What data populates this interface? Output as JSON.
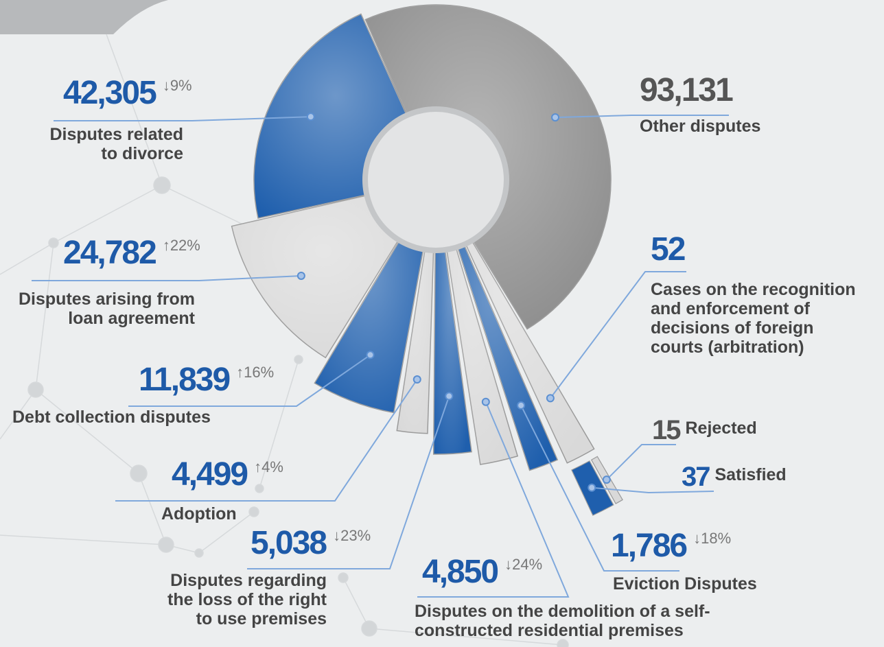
{
  "chart_data": {
    "type": "radial_pie",
    "categories": [
      "Other disputes",
      "Cases on the recognition and enforcement of decisions of foreign courts (arbitration)",
      "Eviction Disputes",
      "Disputes on the demolition of a self-constructed residential premises",
      "Disputes regarding the loss of the right to use premises",
      "Adoption",
      "Debt collection disputes",
      "Disputes arising from loan agreement",
      "Disputes related to divorce"
    ],
    "values": [
      93131,
      52,
      1786,
      4850,
      5038,
      4499,
      11839,
      24782,
      42305
    ],
    "value_labels": [
      "93,131",
      "52",
      "1,786",
      "4,850",
      "5,038",
      "4,499",
      "11,839",
      "24,782",
      "42,305"
    ],
    "changes": [
      null,
      null,
      "↓18%",
      "↓24%",
      "↓23%",
      "↑4%",
      "↑16%",
      "↑22%",
      "↓9%"
    ],
    "colors": [
      "#8c8c8c",
      "#d9d9d9",
      "#1f5fad",
      "#d9d9d9",
      "#1f5fad",
      "#d9d9d9",
      "#1f5fad",
      "#d9d9d9",
      "#1f5fad"
    ],
    "breakdown": {
      "categories": [
        "Rejected",
        "Satisfied"
      ],
      "values": [
        15,
        37
      ],
      "colors": [
        "#d9d9d9",
        "#1f5fad"
      ]
    }
  }
}
